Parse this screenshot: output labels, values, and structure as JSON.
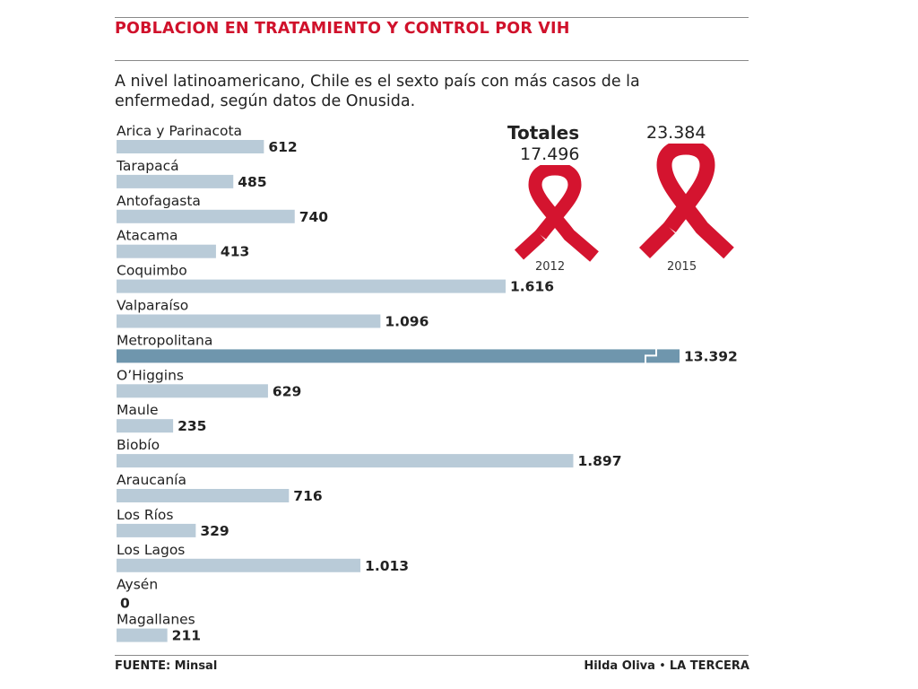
{
  "header": {
    "title": "POBLACION EN TRATAMIENTO Y CONTROL POR VIH",
    "subtitle": "A nivel latinoamericano, Chile es el sexto país con más casos de la enfermedad, según datos de Onusida."
  },
  "colors": {
    "title": "#d0112b",
    "bar": "#b9cbd8",
    "bar_highlight": "#6f96ad",
    "ribbon": "#d4142f"
  },
  "totals": {
    "heading": "Totales",
    "items": [
      {
        "year": "2012",
        "value_label": "17.496",
        "value": 17496,
        "icon": "aids-ribbon-icon"
      },
      {
        "year": "2015",
        "value_label": "23.384",
        "value": 23384,
        "icon": "aids-ribbon-icon"
      }
    ]
  },
  "chart_data": {
    "type": "bar",
    "orientation": "horizontal",
    "title": "POBLACION EN TRATAMIENTO Y CONTROL POR VIH",
    "categories": [
      "Arica y Parinacota",
      "Tarapacá",
      "Antofagasta",
      "Atacama",
      "Coquimbo",
      "Valparaíso",
      "Metropolitana",
      "O’Higgins",
      "Maule",
      "Biobío",
      "Araucanía",
      "Los Ríos",
      "Los Lagos",
      "Aysén",
      "Magallanes"
    ],
    "values": [
      612,
      485,
      740,
      413,
      1616,
      1096,
      13392,
      629,
      235,
      1897,
      716,
      329,
      1013,
      0,
      211
    ],
    "value_labels": [
      "612",
      "485",
      "740",
      "413",
      "1.616",
      "1.096",
      "13.392",
      "629",
      "235",
      "1.897",
      "716",
      "329",
      "1.013",
      "0",
      "211"
    ],
    "highlight": "Metropolitana",
    "axis_break": true,
    "grid": false,
    "legend": "none"
  },
  "footer": {
    "source": "FUENTE: Minsal",
    "author": "Hilda Oliva",
    "separator": "•",
    "publication": "LA TERCERA"
  }
}
